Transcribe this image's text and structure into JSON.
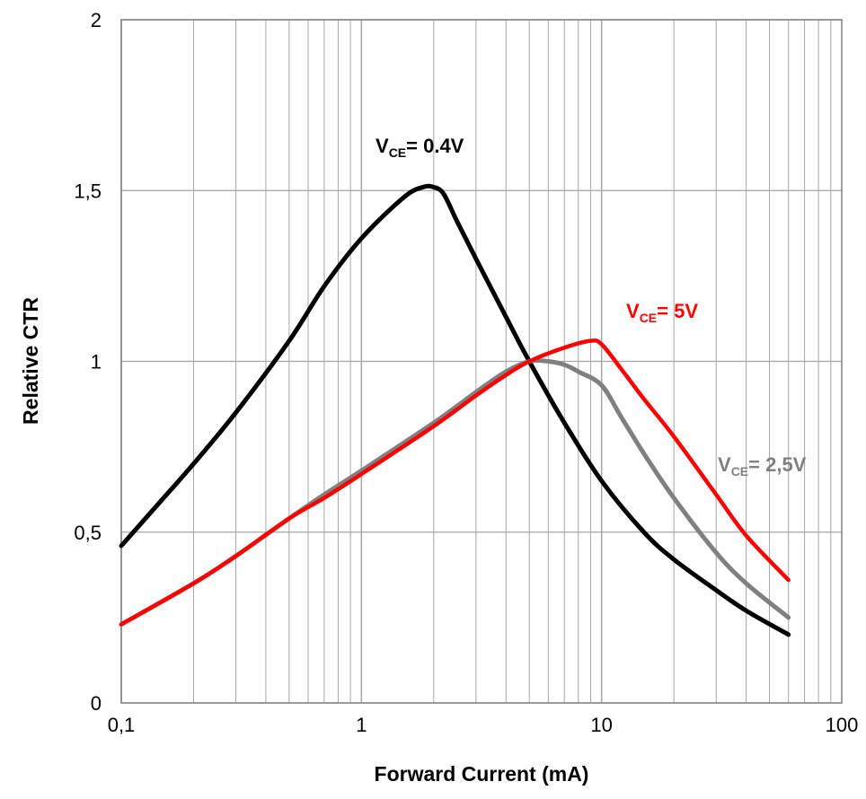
{
  "chart_data": {
    "type": "line",
    "title": "",
    "xlabel": "Forward Current (mA)",
    "ylabel": "Relative CTR",
    "x_scale": "log",
    "xlim": [
      0.1,
      100
    ],
    "ylim": [
      0,
      2
    ],
    "x_ticks": [
      0.1,
      1,
      10,
      100
    ],
    "x_tick_labels": [
      "0,1",
      "1",
      "10",
      "100"
    ],
    "y_ticks": [
      0,
      0.5,
      1,
      1.5,
      2
    ],
    "y_tick_labels": [
      "0",
      "0,5",
      "1",
      "1,5",
      "2"
    ],
    "grid": true,
    "series": [
      {
        "label_main": "V",
        "label_sub": "CE",
        "label_rest": "= 0.4V",
        "color": "#000000",
        "x": [
          0.1,
          0.15,
          0.2,
          0.3,
          0.5,
          0.7,
          1,
          1.5,
          1.8,
          2,
          2.2,
          2.5,
          3,
          4,
          5,
          7,
          10,
          15,
          20,
          30,
          40,
          60
        ],
        "y": [
          0.46,
          0.6,
          0.7,
          0.85,
          1.06,
          1.22,
          1.36,
          1.48,
          1.51,
          1.51,
          1.49,
          1.41,
          1.3,
          1.13,
          1.0,
          0.82,
          0.65,
          0.5,
          0.42,
          0.33,
          0.27,
          0.2
        ]
      },
      {
        "label_main": "V",
        "label_sub": "CE",
        "label_rest": "= 5V",
        "color": "#ff0000",
        "x": [
          0.1,
          0.2,
          0.3,
          0.5,
          0.7,
          1,
          2,
          3,
          4,
          5,
          7,
          9,
          10,
          12,
          15,
          20,
          30,
          40,
          60
        ],
        "y": [
          0.23,
          0.35,
          0.43,
          0.54,
          0.6,
          0.67,
          0.81,
          0.9,
          0.96,
          1.0,
          1.04,
          1.06,
          1.05,
          0.98,
          0.89,
          0.78,
          0.61,
          0.49,
          0.36
        ]
      },
      {
        "label_main": "V",
        "label_sub": "CE",
        "label_rest": "= 2,5V",
        "color": "#808080",
        "x": [
          0.1,
          0.2,
          0.3,
          0.5,
          0.7,
          1,
          2,
          3,
          4,
          5,
          6,
          7,
          8,
          10,
          12,
          15,
          20,
          30,
          40,
          60
        ],
        "y": [
          0.23,
          0.35,
          0.43,
          0.54,
          0.61,
          0.68,
          0.82,
          0.91,
          0.97,
          1.0,
          1.0,
          0.99,
          0.97,
          0.93,
          0.84,
          0.73,
          0.6,
          0.44,
          0.35,
          0.25
        ]
      }
    ]
  }
}
